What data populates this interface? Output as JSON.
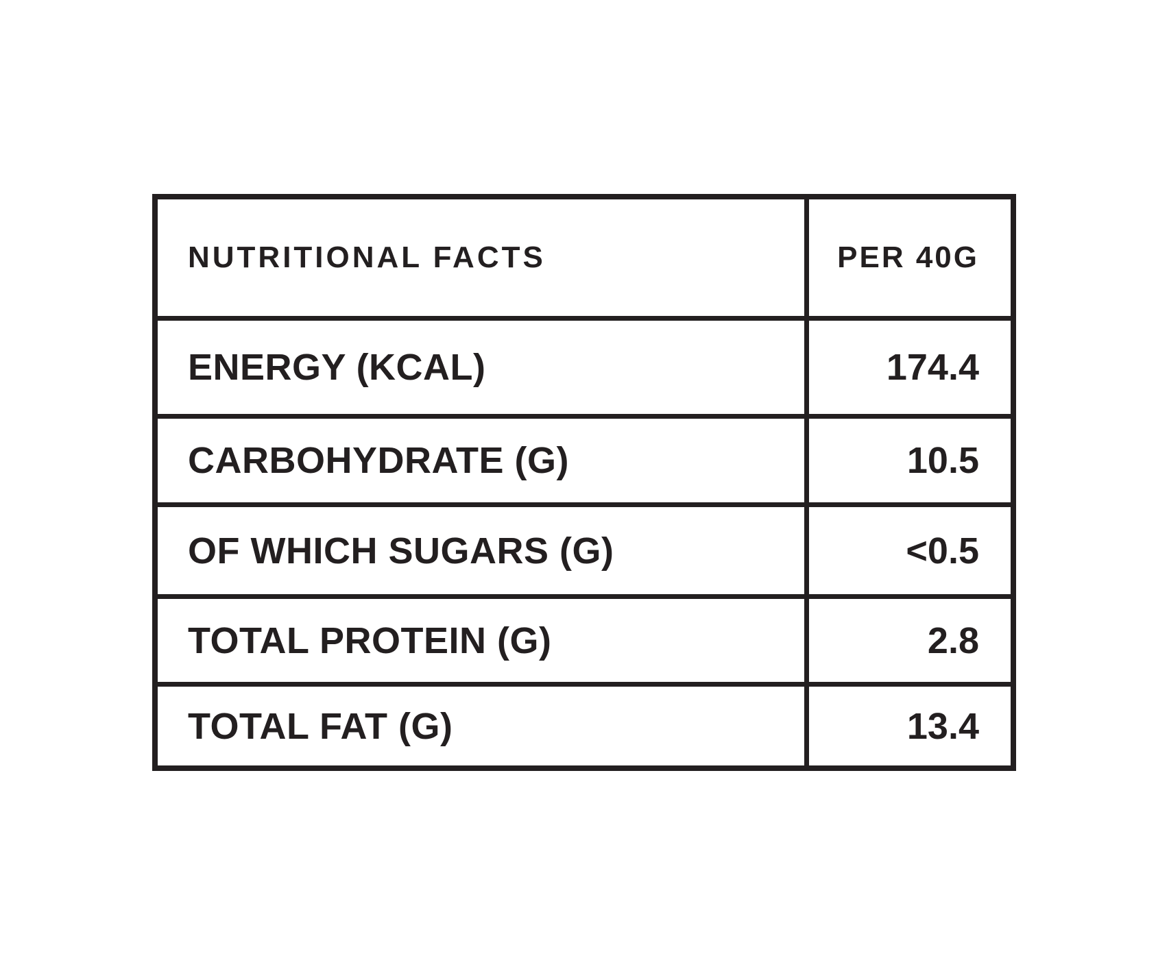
{
  "table": {
    "title": "Nutritional facts table",
    "header": {
      "label": "NUTRITIONAL FACTS",
      "value": "PER 40G"
    },
    "rows": [
      {
        "label": "ENERGY (KCAL)",
        "value": "174.4"
      },
      {
        "label": "CARBOHYDRATE (G)",
        "value": "10.5"
      },
      {
        "label": "OF WHICH SUGARS (G)",
        "value": "<0.5"
      },
      {
        "label": "TOTAL PROTEIN (G)",
        "value": "2.8"
      },
      {
        "label": "TOTAL FAT (G)",
        "value": "13.4"
      }
    ],
    "colors": {
      "border": "#231f20",
      "text": "#231f20",
      "background": "#ffffff"
    }
  }
}
